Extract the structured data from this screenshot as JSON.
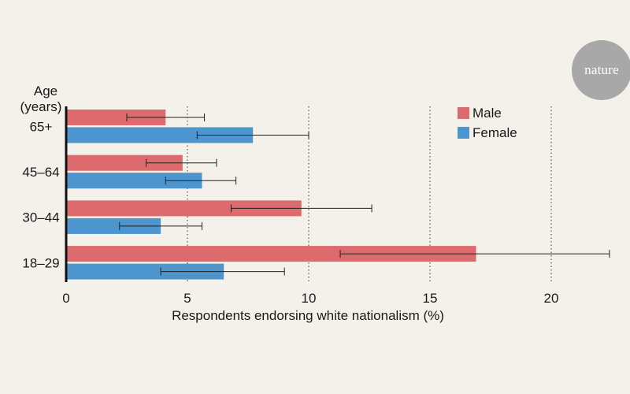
{
  "brand": "nature",
  "chart_data": {
    "type": "bar",
    "orientation": "horizontal",
    "ytitle_line1": "Age",
    "ytitle_line2": "(years)",
    "xlabel": "Respondents endorsing white nationalism (%)",
    "categories": [
      "65+",
      "45–64",
      "30–44",
      "18–29"
    ],
    "xlim": [
      0,
      22.5
    ],
    "xticks": [
      0,
      5,
      10,
      15,
      20
    ],
    "grid": "dotted vertical lines at 5, 10, 15, 20",
    "legend_position": "top-right",
    "series": [
      {
        "name": "Male",
        "color": "#dd6a6c",
        "values": [
          4.1,
          4.8,
          9.7,
          16.9
        ],
        "error_low": [
          2.5,
          3.3,
          6.8,
          11.3
        ],
        "error_high": [
          5.7,
          6.2,
          12.6,
          22.4
        ]
      },
      {
        "name": "Female",
        "color": "#4d95cf",
        "values": [
          7.7,
          5.6,
          3.9,
          6.5
        ],
        "error_low": [
          5.4,
          4.1,
          2.2,
          3.9
        ],
        "error_high": [
          10.0,
          7.0,
          5.6,
          9.0
        ]
      }
    ]
  }
}
